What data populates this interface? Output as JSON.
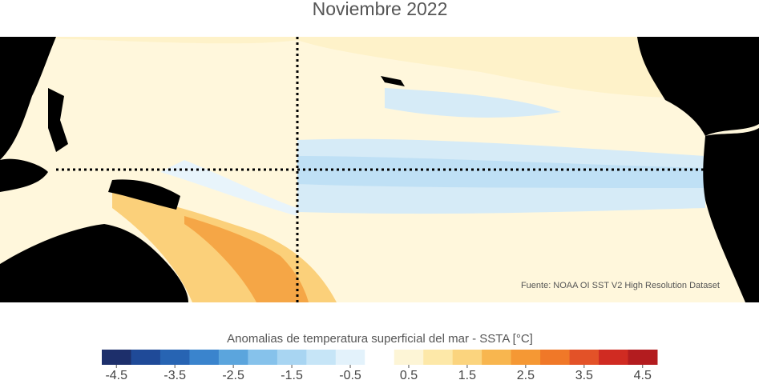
{
  "title": "Noviembre 2022",
  "source": "Fuente: NOAA OI SST V2 High Resolution Dataset",
  "colorbar": {
    "label": "Anomalias de temperatura superficial del mar - SSTA  [°C]",
    "values": [
      -4.5,
      -4,
      -3.5,
      -3,
      -2.5,
      -2,
      -1.5,
      -1,
      -0.5,
      0,
      0.5,
      1,
      1.5,
      2,
      2.5,
      3,
      3.5,
      4,
      4.5
    ],
    "colors": [
      "#1d2f6b",
      "#1f4a98",
      "#2764b3",
      "#3a84cd",
      "#5ba5dd",
      "#86c2eb",
      "#a8d5f2",
      "#c6e5f7",
      "#e3f2fb",
      "#ffffff",
      "#fdf5d6",
      "#fde8a8",
      "#fbd47e",
      "#f8b64f",
      "#f59834",
      "#f07828",
      "#e35228",
      "#d02b22",
      "#b31c1f"
    ],
    "xlim": [
      -4.75,
      4.75
    ],
    "ticks": [
      -4.5,
      -3.5,
      -2.5,
      -1.5,
      -0.5,
      0.5,
      1.5,
      2.5,
      3.5,
      4.5
    ]
  }
}
